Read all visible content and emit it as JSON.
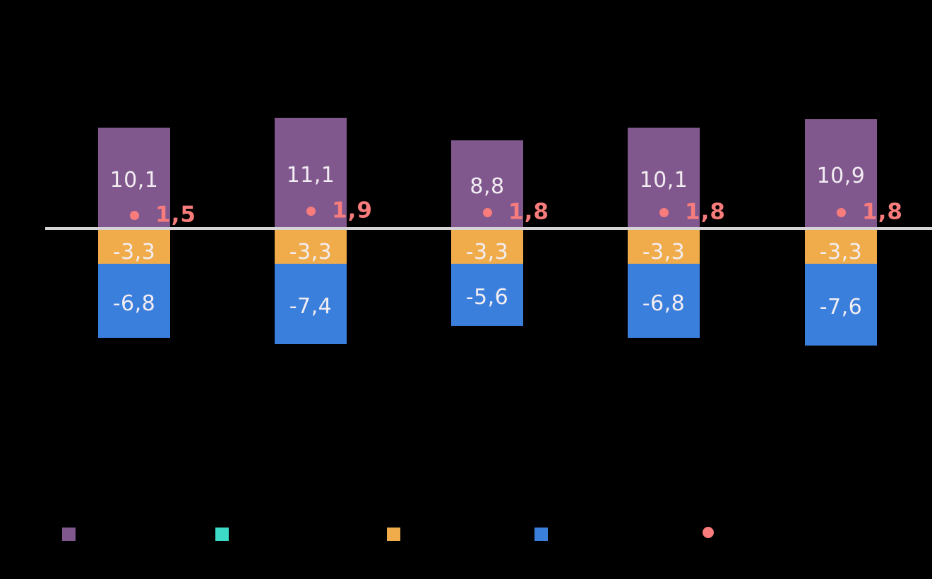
{
  "chart_data": {
    "type": "bar",
    "stacked": true,
    "background": "#000000",
    "grid": false,
    "legend_position": "bottom",
    "categories": [
      "",
      "",
      "",
      "",
      ""
    ],
    "series": [
      {
        "id": "purple",
        "color": "#81588E",
        "values": [
          10.1,
          11.1,
          8.8,
          10.1,
          10.9
        ],
        "labels": [
          "10,1",
          "11,1",
          "8,8",
          "10,1",
          "10,9"
        ]
      },
      {
        "id": "orange",
        "color": "#F0AC4A",
        "values": [
          -3.3,
          -3.3,
          -3.3,
          -3.3,
          -3.3
        ],
        "labels": [
          "-3,3",
          "-3,3",
          "-3,3",
          "-3,3",
          "-3,3"
        ]
      },
      {
        "id": "blue",
        "color": "#3B7FDD",
        "values": [
          -6.8,
          -7.4,
          -5.6,
          -6.8,
          -7.6
        ],
        "labels": [
          "-6,8",
          "-7,4",
          "-5,6",
          "-6,8",
          "-7,6"
        ]
      }
    ],
    "points": {
      "id": "dot",
      "color": "#F87C7C",
      "values": [
        1.5,
        1.9,
        1.8,
        1.8,
        1.8
      ],
      "labels": [
        "1,5",
        "1,9",
        "1,8",
        "1,8",
        "1,8"
      ]
    },
    "legend": [
      {
        "shape": "square",
        "color": "#81588E"
      },
      {
        "shape": "square",
        "color": "#3EDAC8"
      },
      {
        "shape": "square",
        "color": "#F0AC4A"
      },
      {
        "shape": "square",
        "color": "#3B7FDD"
      },
      {
        "shape": "circle",
        "color": "#F87C7C"
      }
    ],
    "axis": {
      "zero_line_color": "#D5D3D5"
    },
    "bar_label_color": "#F2EDF2"
  }
}
